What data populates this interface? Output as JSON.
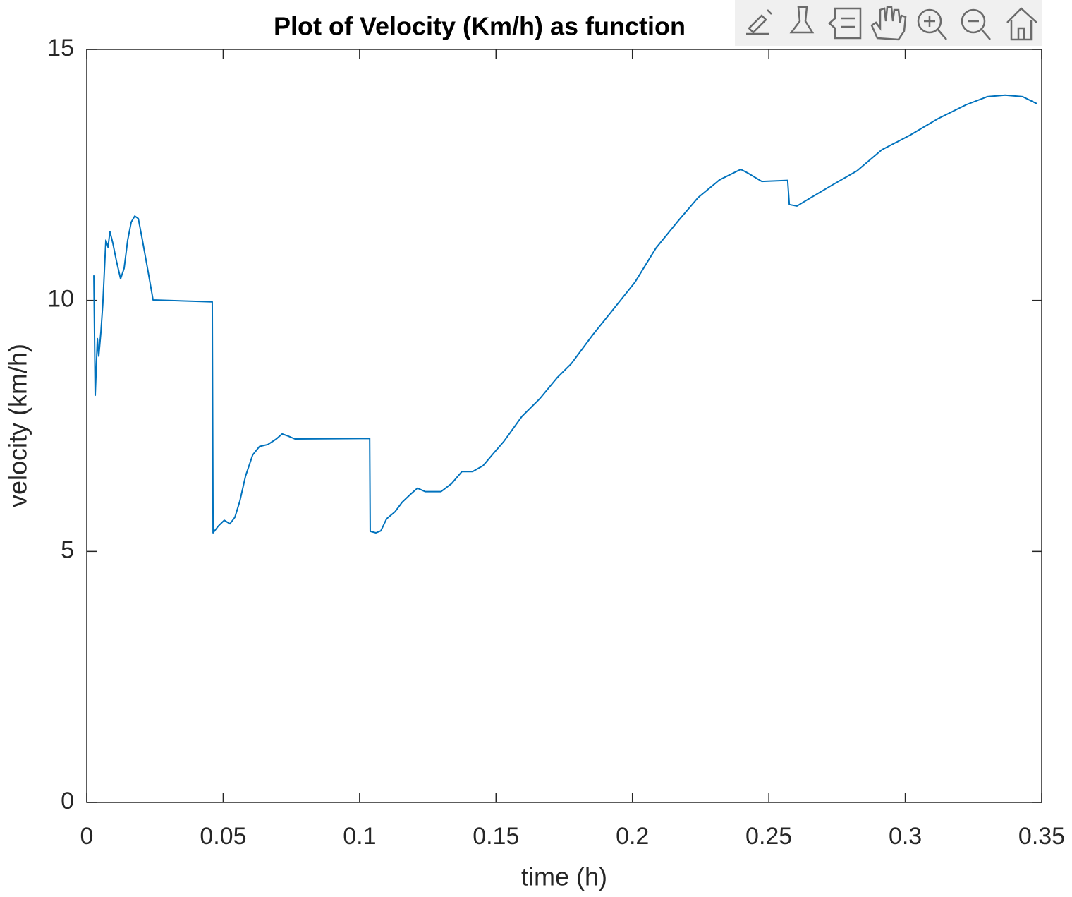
{
  "chart_data": {
    "type": "line",
    "title": "Plot of Velocity (Km/h) as function",
    "x_label": "time (h)",
    "y_label": "velocity (km/h)",
    "xlim": [
      0,
      0.35
    ],
    "xticks": [
      0,
      0.05,
      0.1,
      0.15,
      0.2,
      0.25,
      0.3,
      0.35
    ],
    "ylim": [
      0,
      15
    ],
    "yticks": [
      0,
      5,
      10,
      15
    ],
    "series": [
      {
        "color": "#0072bd",
        "x": [
          0.0026,
          0.0031,
          0.0039,
          0.0044,
          0.0052,
          0.0059,
          0.007,
          0.0078,
          0.0085,
          0.0096,
          0.0109,
          0.0124,
          0.0137,
          0.015,
          0.0163,
          0.0176,
          0.0189,
          0.0204,
          0.0225,
          0.0243,
          0.046,
          0.0463,
          0.0483,
          0.0504,
          0.0525,
          0.0543,
          0.0561,
          0.0582,
          0.0608,
          0.0633,
          0.0664,
          0.0695,
          0.0716,
          0.0737,
          0.0763,
          0.1037,
          0.1039,
          0.106,
          0.1078,
          0.1099,
          0.113,
          0.1156,
          0.1187,
          0.1212,
          0.1241,
          0.1298,
          0.1337,
          0.1375,
          0.1414,
          0.1453,
          0.1492,
          0.153,
          0.1595,
          0.166,
          0.1724,
          0.1776,
          0.1854,
          0.1931,
          0.2009,
          0.2086,
          0.2164,
          0.2241,
          0.2319,
          0.2397,
          0.2422,
          0.2474,
          0.2569,
          0.2575,
          0.2603,
          0.2655,
          0.2733,
          0.2823,
          0.2914,
          0.3017,
          0.312,
          0.3224,
          0.3301,
          0.3366,
          0.343,
          0.3482
        ],
        "values": [
          10.5,
          8.11,
          9.24,
          8.89,
          9.38,
          9.94,
          11.2,
          11.06,
          11.37,
          11.13,
          10.78,
          10.43,
          10.64,
          11.2,
          11.56,
          11.68,
          11.63,
          11.2,
          10.57,
          10.01,
          9.97,
          5.37,
          5.51,
          5.62,
          5.55,
          5.68,
          6.0,
          6.5,
          6.92,
          7.09,
          7.13,
          7.24,
          7.34,
          7.3,
          7.24,
          7.25,
          5.4,
          5.37,
          5.41,
          5.65,
          5.79,
          5.98,
          6.14,
          6.26,
          6.19,
          6.19,
          6.35,
          6.59,
          6.59,
          6.71,
          6.96,
          7.2,
          7.69,
          8.04,
          8.46,
          8.74,
          9.31,
          9.83,
          10.36,
          11.04,
          11.56,
          12.05,
          12.4,
          12.61,
          12.54,
          12.37,
          12.39,
          11.91,
          11.88,
          12.05,
          12.3,
          12.58,
          13.0,
          13.29,
          13.62,
          13.9,
          14.06,
          14.09,
          14.06,
          13.92
        ]
      }
    ]
  }
}
